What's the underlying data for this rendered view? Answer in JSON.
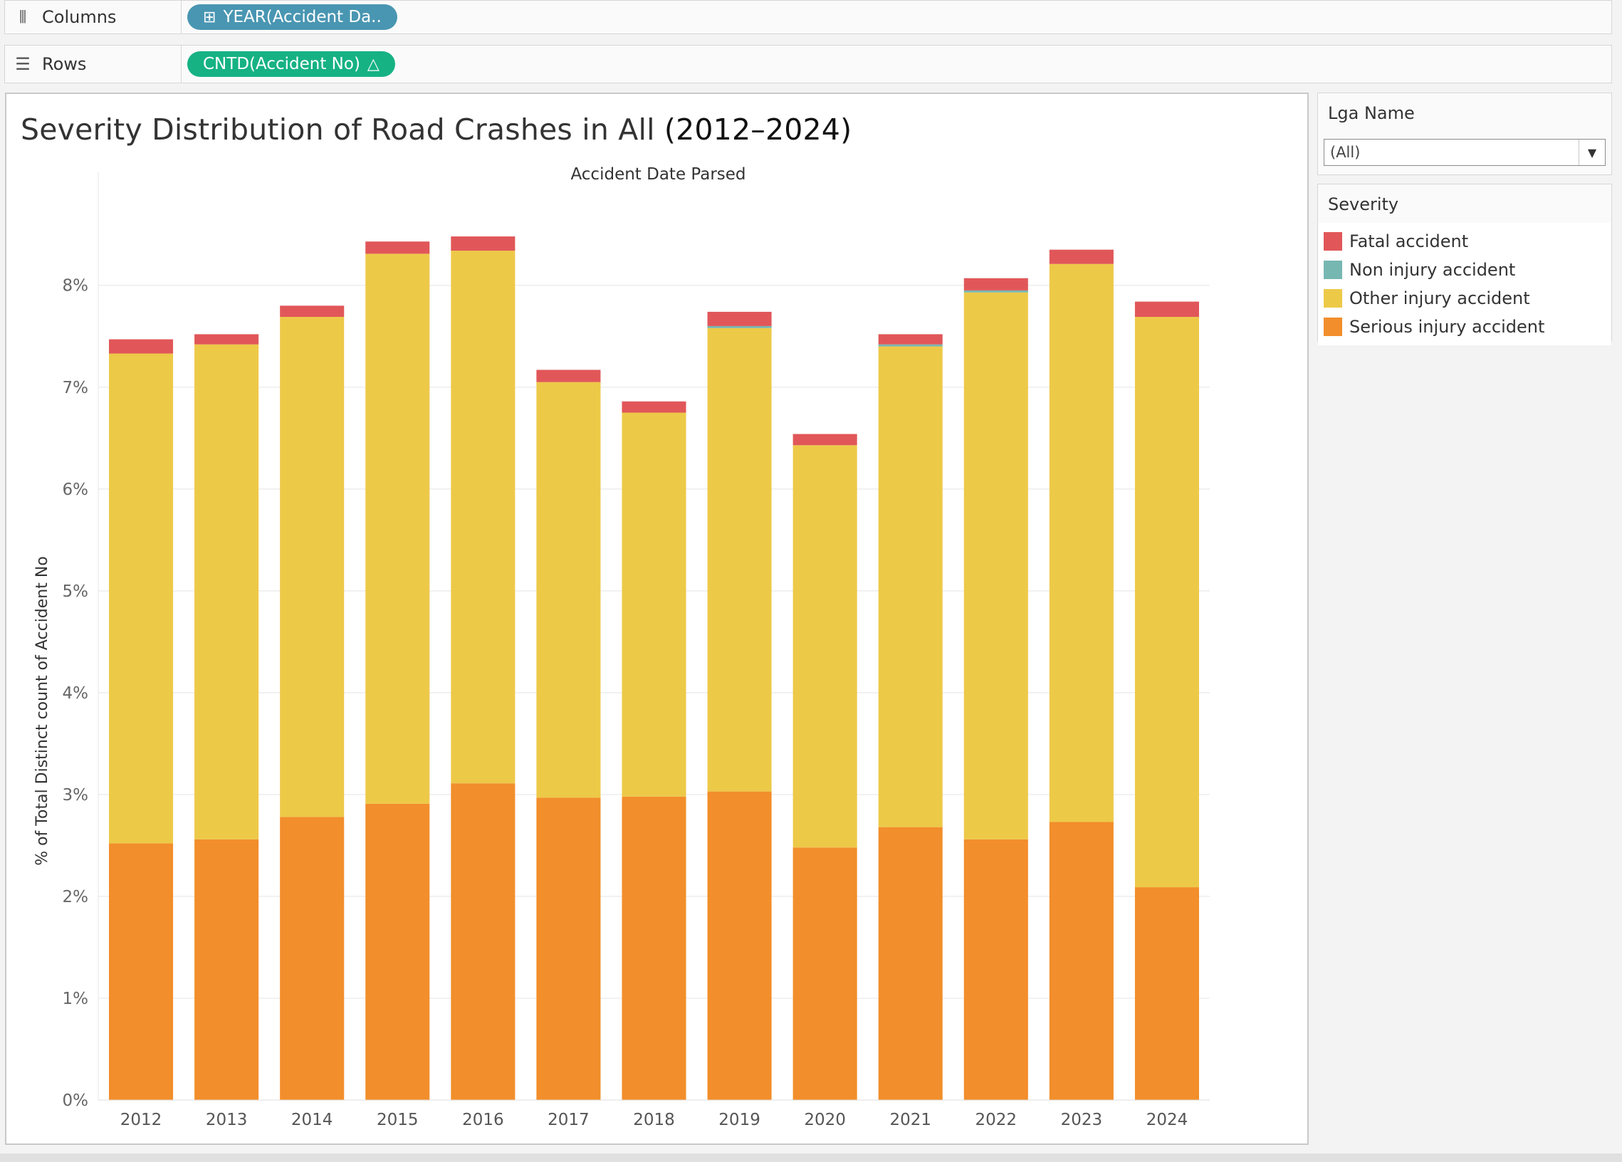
{
  "shelves": {
    "columns": {
      "label": "Columns",
      "icon": "columns-icon",
      "pill": "YEAR(Accident Da..",
      "pill_color": "#4996b2"
    },
    "rows": {
      "label": "Rows",
      "icon": "rows-icon",
      "pill": "CNTD(Accident No)",
      "pill_color": "#16b284"
    }
  },
  "filter": {
    "title": "Lga Name",
    "value": "(All)"
  },
  "legend": {
    "title": "Severity",
    "items": [
      {
        "label": "Fatal accident",
        "color": "#e15759"
      },
      {
        "label": "Non injury accident",
        "color": "#76b7b2"
      },
      {
        "label": "Other injury accident",
        "color": "#edc948"
      },
      {
        "label": "Serious injury accident",
        "color": "#f28e2b"
      }
    ]
  },
  "chart_data": {
    "type": "bar",
    "stacked": true,
    "title_light": "Severity Distribution of Road Crashes in All",
    "title_strong": "(2012–2024)",
    "column_header": "Accident Date Parsed",
    "ylabel": "% of Total Distinct count of Accident No",
    "ylim": [
      0,
      8.9
    ],
    "yticks": [
      "0%",
      "1%",
      "2%",
      "3%",
      "4%",
      "5%",
      "6%",
      "7%",
      "8%"
    ],
    "categories": [
      "2012",
      "2013",
      "2014",
      "2015",
      "2016",
      "2017",
      "2018",
      "2019",
      "2020",
      "2021",
      "2022",
      "2023",
      "2024"
    ],
    "series": [
      {
        "name": "Serious injury accident",
        "color": "#f28e2b",
        "values": [
          2.52,
          2.56,
          2.78,
          2.91,
          3.11,
          2.97,
          2.98,
          3.03,
          2.48,
          2.68,
          2.56,
          2.73,
          2.09
        ]
      },
      {
        "name": "Other injury accident",
        "color": "#edc948",
        "values": [
          4.81,
          4.86,
          4.91,
          5.4,
          5.23,
          4.08,
          3.77,
          4.55,
          3.95,
          4.72,
          5.37,
          5.48,
          5.6
        ]
      },
      {
        "name": "Non injury accident",
        "color": "#76b7b2",
        "values": [
          0.0,
          0.0,
          0.0,
          0.0,
          0.0,
          0.0,
          0.0,
          0.02,
          0.0,
          0.02,
          0.02,
          0.0,
          0.0
        ]
      },
      {
        "name": "Fatal accident",
        "color": "#e15759",
        "values": [
          0.14,
          0.1,
          0.11,
          0.12,
          0.14,
          0.12,
          0.11,
          0.14,
          0.11,
          0.1,
          0.12,
          0.14,
          0.15
        ]
      }
    ],
    "grid": true
  }
}
